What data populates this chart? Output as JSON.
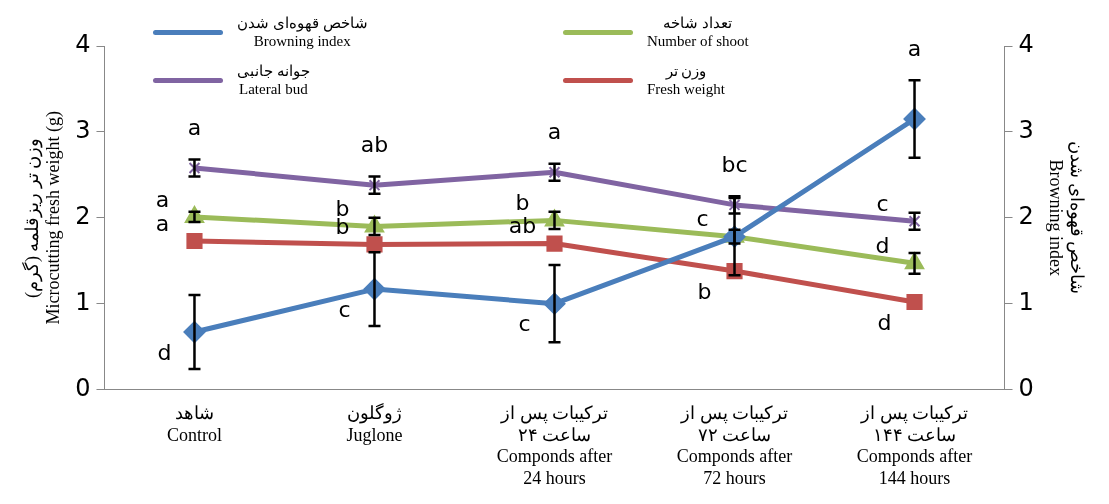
{
  "chart_data": {
    "type": "line",
    "ylabel": "وزن تر ریزقلمه (گرم)\nMicrocutting fresh weight (g)",
    "y2label": "شاخص قهوه‌ای شدن\nBrowning index",
    "categories": [
      "شاهد\nControl",
      "ژوگلون\nJuglone",
      "ترکیبات پس از\n۲۴ ساعت\nComponds after\n24 hours",
      "ترکیبات پس از\n۷۲ ساعت\nComponds after\n72 hours",
      "ترکیبات پس از\n۱۴۴ ساعت\nComponds after\n144 hours"
    ],
    "ylim": [
      0,
      4
    ],
    "yticks": [
      0,
      1,
      2,
      3,
      4
    ],
    "y2lim": [
      0,
      4
    ],
    "y2ticks": [
      0,
      1,
      2,
      3,
      4
    ],
    "grid": false,
    "legend": "top",
    "line_style": "solid",
    "series": [
      {
        "name": "شاخص قهوه‌ای شدن\nBrowning index",
        "color": "#4a7ebb",
        "marker": "diamond",
        "axis": "y2",
        "values": [
          0.67,
          1.17,
          1.0,
          1.78,
          3.15
        ],
        "errors": [
          0.43,
          0.43,
          0.45,
          0.45,
          0.45
        ],
        "value_labels": [
          "d",
          "c",
          "c",
          null,
          "a"
        ]
      },
      {
        "name": "تعداد شاخه\nNumber of shoot",
        "color": "#9bbb59",
        "marker": "triangle",
        "values": [
          2.01,
          1.9,
          1.97,
          1.78,
          1.47
        ],
        "errors": [
          0.06,
          0.1,
          0.1,
          0.08,
          0.12
        ],
        "value_labels": [
          "a",
          "b",
          "b",
          "c",
          "d"
        ]
      },
      {
        "name": "جوانه جانبی\nLateral bud",
        "color": "#8064a2",
        "marker": "cross",
        "values": [
          2.58,
          2.38,
          2.53,
          2.15,
          1.96
        ],
        "errors": [
          0.1,
          0.1,
          0.1,
          0.1,
          0.1
        ],
        "value_labels": [
          "a",
          "ab",
          "a",
          "bc",
          "c"
        ]
      },
      {
        "name": "وزن تر\nFresh weight",
        "color": "#c0504d",
        "marker": "square",
        "values": [
          1.73,
          1.69,
          1.7,
          1.38,
          1.02
        ],
        "value_labels": [
          "a",
          "b",
          "ab",
          "b",
          "d"
        ]
      }
    ]
  }
}
